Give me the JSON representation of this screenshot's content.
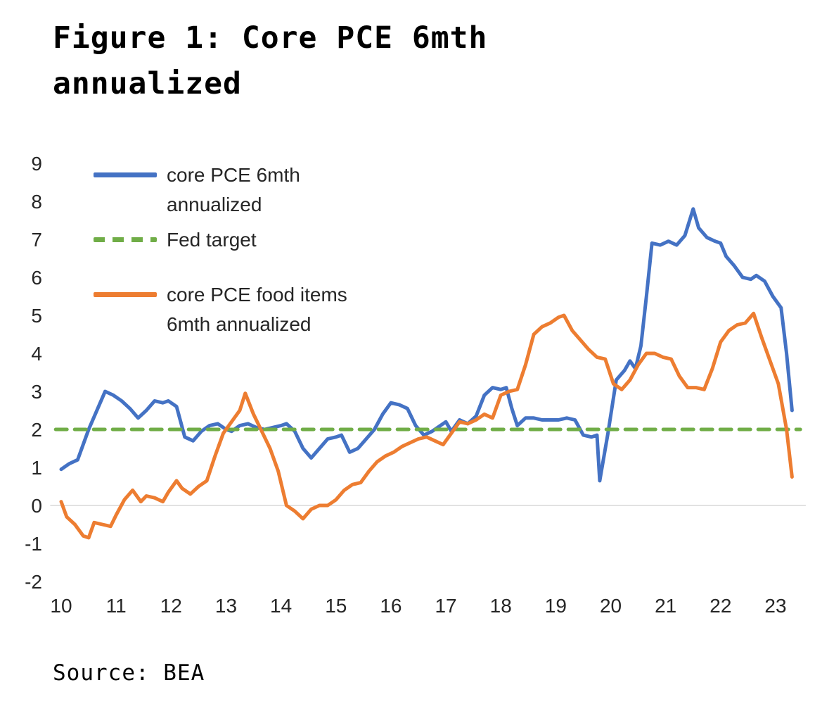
{
  "title": "Figure 1: Core PCE 6mth annualized",
  "source": "Source: BEA",
  "colors": {
    "core_pce": "#4472C4",
    "fed_target": "#70AD47",
    "core_pce_food": "#ED7D31",
    "zero_gridline": "#d9d9d9",
    "text": "#262626"
  },
  "legend": {
    "items": [
      {
        "label_lines": [
          "core PCE 6mth",
          "annualized"
        ],
        "color": "#4472C4",
        "style": "solid"
      },
      {
        "label_lines": [
          "Fed target"
        ],
        "color": "#70AD47",
        "style": "dashed"
      },
      {
        "label_lines": [
          "core PCE food items",
          "6mth annualized"
        ],
        "color": "#ED7D31",
        "style": "solid"
      }
    ]
  },
  "chart_data": {
    "type": "line",
    "title": "Figure 1: Core PCE 6mth annualized",
    "xlabel": "",
    "ylabel": "",
    "xlim": [
      9.8,
      23.55
    ],
    "ylim": [
      -2,
      9
    ],
    "x_ticks": [
      10,
      11,
      12,
      13,
      14,
      15,
      16,
      17,
      18,
      19,
      20,
      21,
      22,
      23
    ],
    "y_ticks": [
      -2,
      -1,
      0,
      1,
      2,
      3,
      4,
      5,
      6,
      7,
      8,
      9
    ],
    "grid": "zero-line-only",
    "legend_position": "inside-top-left",
    "series": [
      {
        "name": "core PCE 6mth annualized",
        "color": "#4472C4",
        "style": "solid",
        "points": [
          [
            10.0,
            0.95
          ],
          [
            10.15,
            1.1
          ],
          [
            10.3,
            1.2
          ],
          [
            10.5,
            2.0
          ],
          [
            10.65,
            2.5
          ],
          [
            10.8,
            3.0
          ],
          [
            10.95,
            2.9
          ],
          [
            11.1,
            2.75
          ],
          [
            11.25,
            2.55
          ],
          [
            11.4,
            2.3
          ],
          [
            11.55,
            2.5
          ],
          [
            11.7,
            2.75
          ],
          [
            11.85,
            2.7
          ],
          [
            11.95,
            2.75
          ],
          [
            12.1,
            2.6
          ],
          [
            12.25,
            1.8
          ],
          [
            12.4,
            1.7
          ],
          [
            12.55,
            1.95
          ],
          [
            12.7,
            2.1
          ],
          [
            12.85,
            2.15
          ],
          [
            13.0,
            2.0
          ],
          [
            13.1,
            1.95
          ],
          [
            13.25,
            2.1
          ],
          [
            13.4,
            2.15
          ],
          [
            13.55,
            2.05
          ],
          [
            13.7,
            2.0
          ],
          [
            13.85,
            2.05
          ],
          [
            14.0,
            2.1
          ],
          [
            14.1,
            2.15
          ],
          [
            14.25,
            1.95
          ],
          [
            14.4,
            1.5
          ],
          [
            14.55,
            1.25
          ],
          [
            14.7,
            1.5
          ],
          [
            14.85,
            1.75
          ],
          [
            15.0,
            1.8
          ],
          [
            15.1,
            1.85
          ],
          [
            15.25,
            1.4
          ],
          [
            15.4,
            1.5
          ],
          [
            15.55,
            1.75
          ],
          [
            15.7,
            2.0
          ],
          [
            15.85,
            2.4
          ],
          [
            16.0,
            2.7
          ],
          [
            16.15,
            2.65
          ],
          [
            16.3,
            2.55
          ],
          [
            16.45,
            2.1
          ],
          [
            16.6,
            1.85
          ],
          [
            16.75,
            1.95
          ],
          [
            16.9,
            2.1
          ],
          [
            17.0,
            2.2
          ],
          [
            17.1,
            1.95
          ],
          [
            17.25,
            2.25
          ],
          [
            17.4,
            2.15
          ],
          [
            17.55,
            2.35
          ],
          [
            17.7,
            2.9
          ],
          [
            17.85,
            3.1
          ],
          [
            18.0,
            3.05
          ],
          [
            18.1,
            3.1
          ],
          [
            18.2,
            2.55
          ],
          [
            18.3,
            2.1
          ],
          [
            18.45,
            2.3
          ],
          [
            18.6,
            2.3
          ],
          [
            18.75,
            2.25
          ],
          [
            18.9,
            2.25
          ],
          [
            19.05,
            2.25
          ],
          [
            19.2,
            2.3
          ],
          [
            19.35,
            2.25
          ],
          [
            19.5,
            1.85
          ],
          [
            19.65,
            1.8
          ],
          [
            19.75,
            1.85
          ],
          [
            19.8,
            0.65
          ],
          [
            19.95,
            1.9
          ],
          [
            20.1,
            3.3
          ],
          [
            20.25,
            3.55
          ],
          [
            20.35,
            3.8
          ],
          [
            20.45,
            3.6
          ],
          [
            20.55,
            4.2
          ],
          [
            20.65,
            5.5
          ],
          [
            20.75,
            6.9
          ],
          [
            20.9,
            6.85
          ],
          [
            21.05,
            6.95
          ],
          [
            21.2,
            6.85
          ],
          [
            21.35,
            7.1
          ],
          [
            21.5,
            7.8
          ],
          [
            21.6,
            7.3
          ],
          [
            21.75,
            7.05
          ],
          [
            21.9,
            6.95
          ],
          [
            22.0,
            6.9
          ],
          [
            22.1,
            6.55
          ],
          [
            22.25,
            6.3
          ],
          [
            22.4,
            6.0
          ],
          [
            22.55,
            5.95
          ],
          [
            22.65,
            6.05
          ],
          [
            22.8,
            5.9
          ],
          [
            22.95,
            5.5
          ],
          [
            23.1,
            5.2
          ],
          [
            23.2,
            4.0
          ],
          [
            23.3,
            2.5
          ]
        ]
      },
      {
        "name": "Fed target",
        "color": "#70AD47",
        "style": "dashed",
        "points": [
          [
            9.9,
            2.0
          ],
          [
            23.45,
            2.0
          ]
        ]
      },
      {
        "name": "core PCE food items 6mth annualized",
        "color": "#ED7D31",
        "style": "solid",
        "points": [
          [
            10.0,
            0.1
          ],
          [
            10.1,
            -0.3
          ],
          [
            10.25,
            -0.5
          ],
          [
            10.4,
            -0.8
          ],
          [
            10.5,
            -0.85
          ],
          [
            10.6,
            -0.45
          ],
          [
            10.75,
            -0.5
          ],
          [
            10.9,
            -0.55
          ],
          [
            11.0,
            -0.25
          ],
          [
            11.15,
            0.15
          ],
          [
            11.3,
            0.4
          ],
          [
            11.45,
            0.1
          ],
          [
            11.55,
            0.25
          ],
          [
            11.7,
            0.2
          ],
          [
            11.85,
            0.1
          ],
          [
            11.95,
            0.35
          ],
          [
            12.1,
            0.65
          ],
          [
            12.2,
            0.45
          ],
          [
            12.35,
            0.3
          ],
          [
            12.5,
            0.5
          ],
          [
            12.65,
            0.65
          ],
          [
            12.8,
            1.3
          ],
          [
            12.95,
            1.9
          ],
          [
            13.1,
            2.2
          ],
          [
            13.25,
            2.5
          ],
          [
            13.35,
            2.95
          ],
          [
            13.5,
            2.4
          ],
          [
            13.65,
            1.95
          ],
          [
            13.8,
            1.5
          ],
          [
            13.95,
            0.9
          ],
          [
            14.1,
            0.0
          ],
          [
            14.25,
            -0.15
          ],
          [
            14.4,
            -0.35
          ],
          [
            14.55,
            -0.1
          ],
          [
            14.7,
            0.0
          ],
          [
            14.85,
            0.0
          ],
          [
            15.0,
            0.15
          ],
          [
            15.15,
            0.4
          ],
          [
            15.3,
            0.55
          ],
          [
            15.45,
            0.6
          ],
          [
            15.6,
            0.9
          ],
          [
            15.75,
            1.15
          ],
          [
            15.9,
            1.3
          ],
          [
            16.05,
            1.4
          ],
          [
            16.2,
            1.55
          ],
          [
            16.35,
            1.65
          ],
          [
            16.5,
            1.75
          ],
          [
            16.65,
            1.8
          ],
          [
            16.8,
            1.7
          ],
          [
            16.95,
            1.6
          ],
          [
            17.1,
            1.9
          ],
          [
            17.25,
            2.2
          ],
          [
            17.4,
            2.15
          ],
          [
            17.55,
            2.25
          ],
          [
            17.7,
            2.4
          ],
          [
            17.85,
            2.3
          ],
          [
            18.0,
            2.9
          ],
          [
            18.15,
            3.0
          ],
          [
            18.3,
            3.05
          ],
          [
            18.45,
            3.7
          ],
          [
            18.6,
            4.5
          ],
          [
            18.75,
            4.7
          ],
          [
            18.9,
            4.8
          ],
          [
            19.05,
            4.95
          ],
          [
            19.15,
            5.0
          ],
          [
            19.3,
            4.6
          ],
          [
            19.45,
            4.35
          ],
          [
            19.6,
            4.1
          ],
          [
            19.75,
            3.9
          ],
          [
            19.9,
            3.85
          ],
          [
            20.05,
            3.2
          ],
          [
            20.2,
            3.05
          ],
          [
            20.35,
            3.3
          ],
          [
            20.5,
            3.7
          ],
          [
            20.65,
            4.0
          ],
          [
            20.8,
            4.0
          ],
          [
            20.95,
            3.9
          ],
          [
            21.1,
            3.85
          ],
          [
            21.25,
            3.4
          ],
          [
            21.4,
            3.1
          ],
          [
            21.55,
            3.1
          ],
          [
            21.7,
            3.05
          ],
          [
            21.85,
            3.6
          ],
          [
            22.0,
            4.3
          ],
          [
            22.15,
            4.6
          ],
          [
            22.3,
            4.75
          ],
          [
            22.45,
            4.8
          ],
          [
            22.6,
            5.05
          ],
          [
            22.75,
            4.4
          ],
          [
            22.9,
            3.8
          ],
          [
            23.05,
            3.2
          ],
          [
            23.2,
            2.0
          ],
          [
            23.3,
            0.75
          ]
        ]
      }
    ]
  }
}
